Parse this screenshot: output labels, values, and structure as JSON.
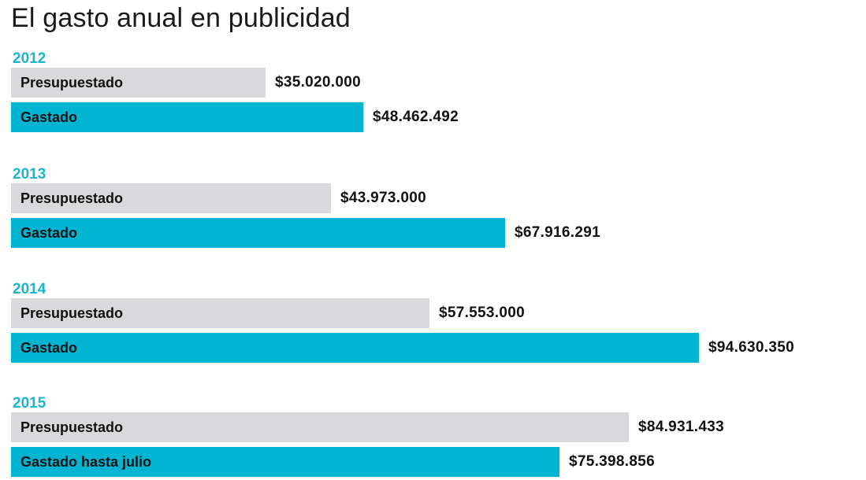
{
  "chart_data": {
    "type": "bar",
    "orientation": "horizontal",
    "title": "El gasto anual en publicidad",
    "groups": [
      {
        "year": "2012",
        "bars": [
          {
            "label": "Presupuestado",
            "kind": "budget",
            "value": 35020000,
            "value_label": "$35.020.000"
          },
          {
            "label": "Gastado",
            "kind": "spent",
            "value": 48462492,
            "value_label": "$48.462.492"
          }
        ]
      },
      {
        "year": "2013",
        "bars": [
          {
            "label": "Presupuestado",
            "kind": "budget",
            "value": 43973000,
            "value_label": "$43.973.000"
          },
          {
            "label": "Gastado",
            "kind": "spent",
            "value": 67916291,
            "value_label": "$67.916.291"
          }
        ]
      },
      {
        "year": "2014",
        "bars": [
          {
            "label": "Presupuestado",
            "kind": "budget",
            "value": 57553000,
            "value_label": "$57.553.000"
          },
          {
            "label": "Gastado",
            "kind": "spent",
            "value": 94630350,
            "value_label": "$94.630.350"
          }
        ]
      },
      {
        "year": "2015",
        "bars": [
          {
            "label": "Presupuestado",
            "kind": "budget",
            "value": 84931433,
            "value_label": "$84.931.433"
          },
          {
            "label": "Gastado hasta julio",
            "kind": "spent",
            "value": 75398856,
            "value_label": "$75.398.856"
          }
        ]
      }
    ],
    "colors": {
      "budget": "#d9d9db",
      "spent": "#00b4d2",
      "year_label": "#1ab5cf"
    },
    "grid": false,
    "legend": "none"
  }
}
